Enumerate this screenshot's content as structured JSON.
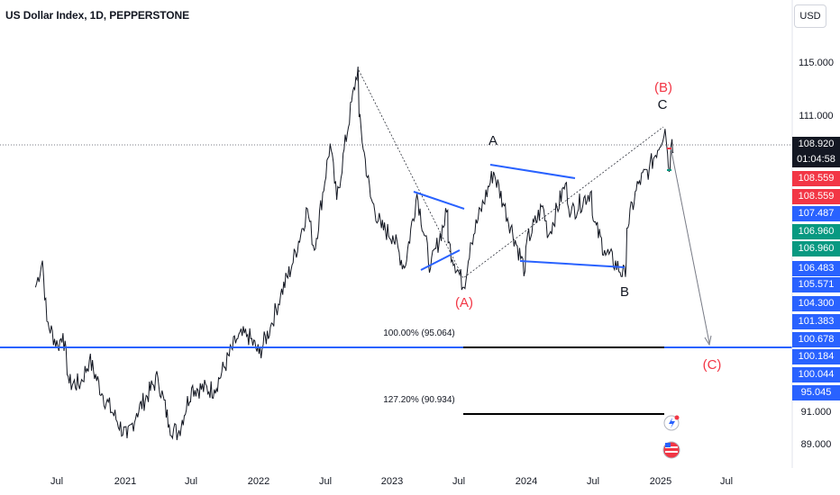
{
  "header": {
    "title": "US Dollar Index, 1D, PEPPERSTONE",
    "currency_button": "USD"
  },
  "chart_data": {
    "type": "line",
    "symbol": "US Dollar Index",
    "interval": "1D",
    "source": "PEPPERSTONE",
    "y_axis_ticks": [
      "115.000",
      "111.000",
      "91.000",
      "89.000"
    ],
    "x_axis_ticks": [
      "Jul",
      "2021",
      "Jul",
      "2022",
      "Jul",
      "2023",
      "Jul",
      "2024",
      "Jul",
      "2025",
      "Jul"
    ],
    "price_labels": [
      {
        "value": "108.920",
        "color": "#131722"
      },
      {
        "value": "01:04:58",
        "color": "#131722"
      },
      {
        "value": "108.559",
        "color": "#f23645"
      },
      {
        "value": "108.559",
        "color": "#f23645"
      },
      {
        "value": "107.487",
        "color": "#2962ff"
      },
      {
        "value": "106.960",
        "color": "#089981"
      },
      {
        "value": "106.960",
        "color": "#089981"
      },
      {
        "value": "106.483",
        "color": "#2962ff"
      },
      {
        "value": "105.571",
        "color": "#2962ff"
      },
      {
        "value": "104.300",
        "color": "#2962ff"
      },
      {
        "value": "101.383",
        "color": "#2962ff"
      },
      {
        "value": "100.678",
        "color": "#2962ff"
      },
      {
        "value": "100.184",
        "color": "#2962ff"
      },
      {
        "value": "100.044",
        "color": "#2962ff"
      },
      {
        "value": "95.045",
        "color": "#2962ff"
      }
    ],
    "wave_labels": [
      {
        "text": "A",
        "color": "#131722"
      },
      {
        "text": "B",
        "color": "#131722"
      },
      {
        "text": "C",
        "color": "#131722"
      },
      {
        "text": "(A)",
        "color": "#f23645"
      },
      {
        "text": "(B)",
        "color": "#f23645"
      },
      {
        "text": "(C)",
        "color": "#f23645"
      }
    ],
    "fib_levels": [
      {
        "label": "100.00% (95.064)",
        "ratio": 1.0,
        "price": 95.064
      },
      {
        "label": "127.20% (90.934)",
        "ratio": 1.272,
        "price": 90.934
      }
    ],
    "price_series": [
      [
        "2020-05",
        99.5
      ],
      [
        "2020-05-20",
        101.3
      ],
      [
        "2020-06",
        97.2
      ],
      [
        "2020-07",
        95.5
      ],
      [
        "2020-07-15",
        96.4
      ],
      [
        "2020-08",
        93.0
      ],
      [
        "2020-09",
        93.0
      ],
      [
        "2020-09-25",
        94.6
      ],
      [
        "2020-11",
        92.2
      ],
      [
        "2021-01-06",
        89.3
      ],
      [
        "2021-02",
        91.0
      ],
      [
        "2021-03-31",
        93.4
      ],
      [
        "2021-05",
        90.2
      ],
      [
        "2021-05-25",
        89.6
      ],
      [
        "2021-07",
        92.7
      ],
      [
        "2021-09",
        92.6
      ],
      [
        "2021-11",
        96.0
      ],
      [
        "2021-12",
        96.3
      ],
      [
        "2022-01",
        95.0
      ],
      [
        "2022-02",
        96.8
      ],
      [
        "2022-03",
        99.0
      ],
      [
        "2022-04",
        101.0
      ],
      [
        "2022-05-13",
        104.8
      ],
      [
        "2022-06",
        102.0
      ],
      [
        "2022-07-14",
        109.2
      ],
      [
        "2022-08",
        105.4
      ],
      [
        "2022-09-28",
        114.8
      ],
      [
        "2022-10",
        111.0
      ],
      [
        "2022-11",
        105.6
      ],
      [
        "2022-12",
        103.5
      ],
      [
        "2023-01",
        103.0
      ],
      [
        "2023-02-02",
        100.8
      ],
      [
        "2023-03-08",
        105.8
      ],
      [
        "2023-04-14",
        100.8
      ],
      [
        "2023-05-31",
        104.7
      ],
      [
        "2023-06",
        102.5
      ],
      [
        "2023-07-14",
        99.5
      ],
      [
        "2023-08",
        102.5
      ],
      [
        "2023-10-03",
        107.3
      ],
      [
        "2023-11",
        105.0
      ],
      [
        "2023-12-28",
        100.6
      ],
      [
        "2024-01",
        102.5
      ],
      [
        "2024-02-14",
        105.0
      ],
      [
        "2024-03",
        103.0
      ],
      [
        "2024-04-16",
        106.5
      ],
      [
        "2024-05",
        104.5
      ],
      [
        "2024-06-26",
        106.0
      ],
      [
        "2024-07",
        104.0
      ],
      [
        "2024-08",
        102.0
      ],
      [
        "2024-09-27",
        100.2
      ],
      [
        "2024-10",
        103.5
      ],
      [
        "2024-11",
        106.5
      ],
      [
        "2024-12",
        107.5
      ],
      [
        "2025-01-13",
        110.2
      ],
      [
        "2025-01-20",
        108.5
      ],
      [
        "2025-01-24",
        107.3
      ],
      [
        "2025-02",
        109.5
      ],
      [
        "2025-02-05",
        108.6
      ]
    ]
  },
  "colors": {
    "blue": "#2962ff",
    "red": "#f23645",
    "green": "#089981",
    "text": "#131722"
  }
}
